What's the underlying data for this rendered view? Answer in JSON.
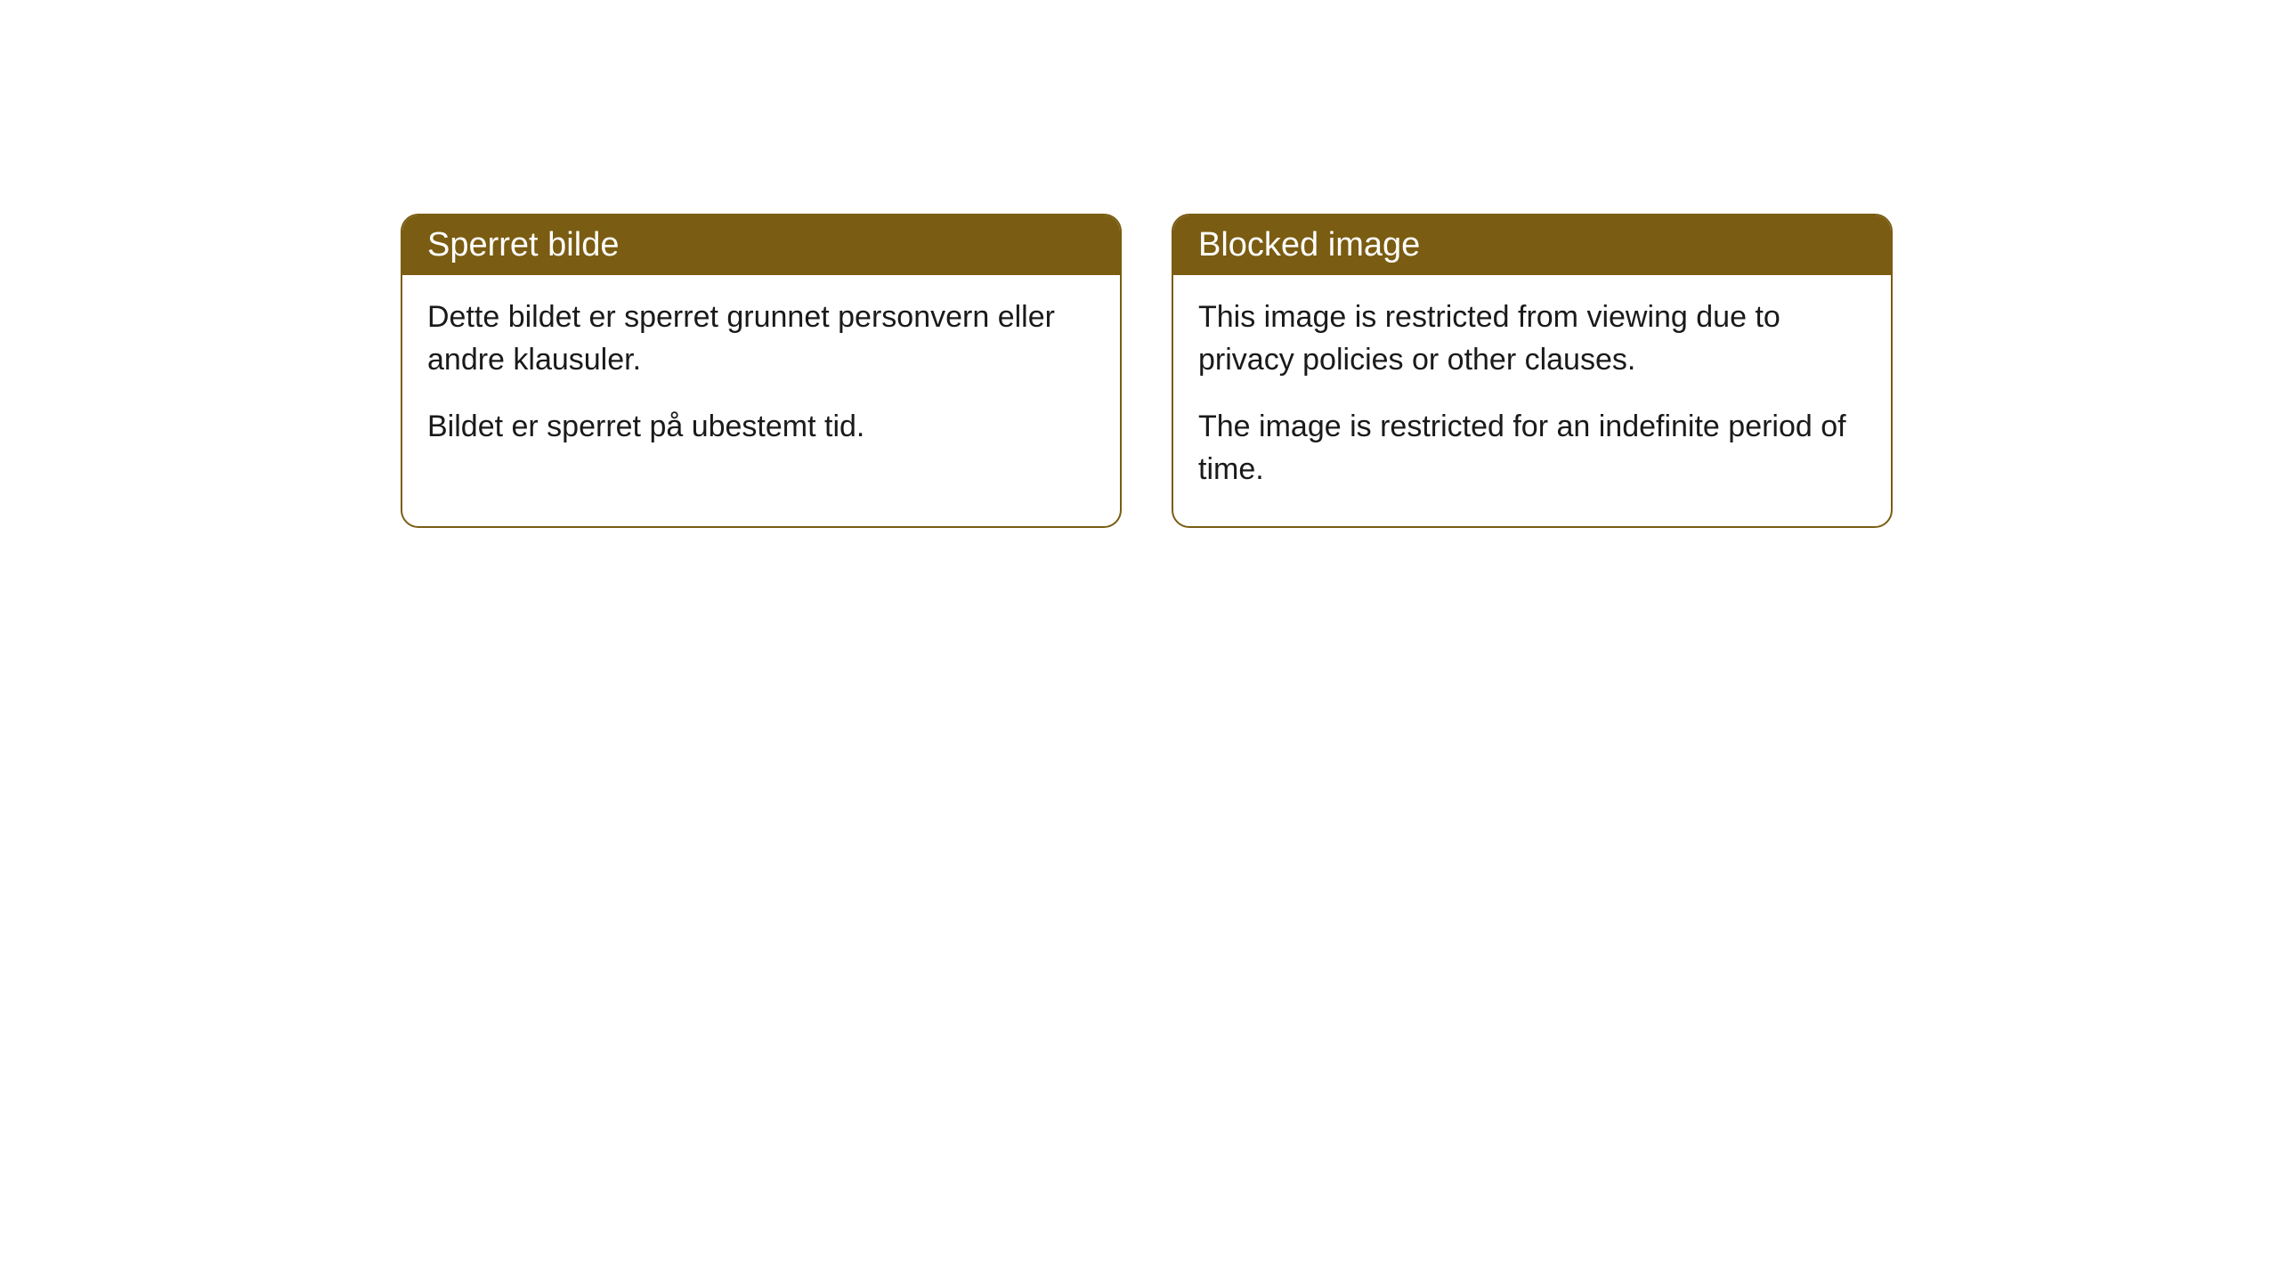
{
  "cards": [
    {
      "title": "Sperret bilde",
      "paragraph1": "Dette bildet er sperret grunnet personvern eller andre klausuler.",
      "paragraph2": "Bildet er sperret på ubestemt tid."
    },
    {
      "title": "Blocked image",
      "paragraph1": "This image is restricted from viewing due to privacy policies or other clauses.",
      "paragraph2": "The image is restricted for an indefinite period of time."
    }
  ],
  "styling": {
    "header_background": "#7a5c12",
    "header_text_color": "#ffffff",
    "border_color": "#7a5c12",
    "body_background": "#ffffff",
    "body_text_color": "#1a1a1a",
    "border_radius": 20,
    "header_fontsize": 38,
    "body_fontsize": 34
  }
}
